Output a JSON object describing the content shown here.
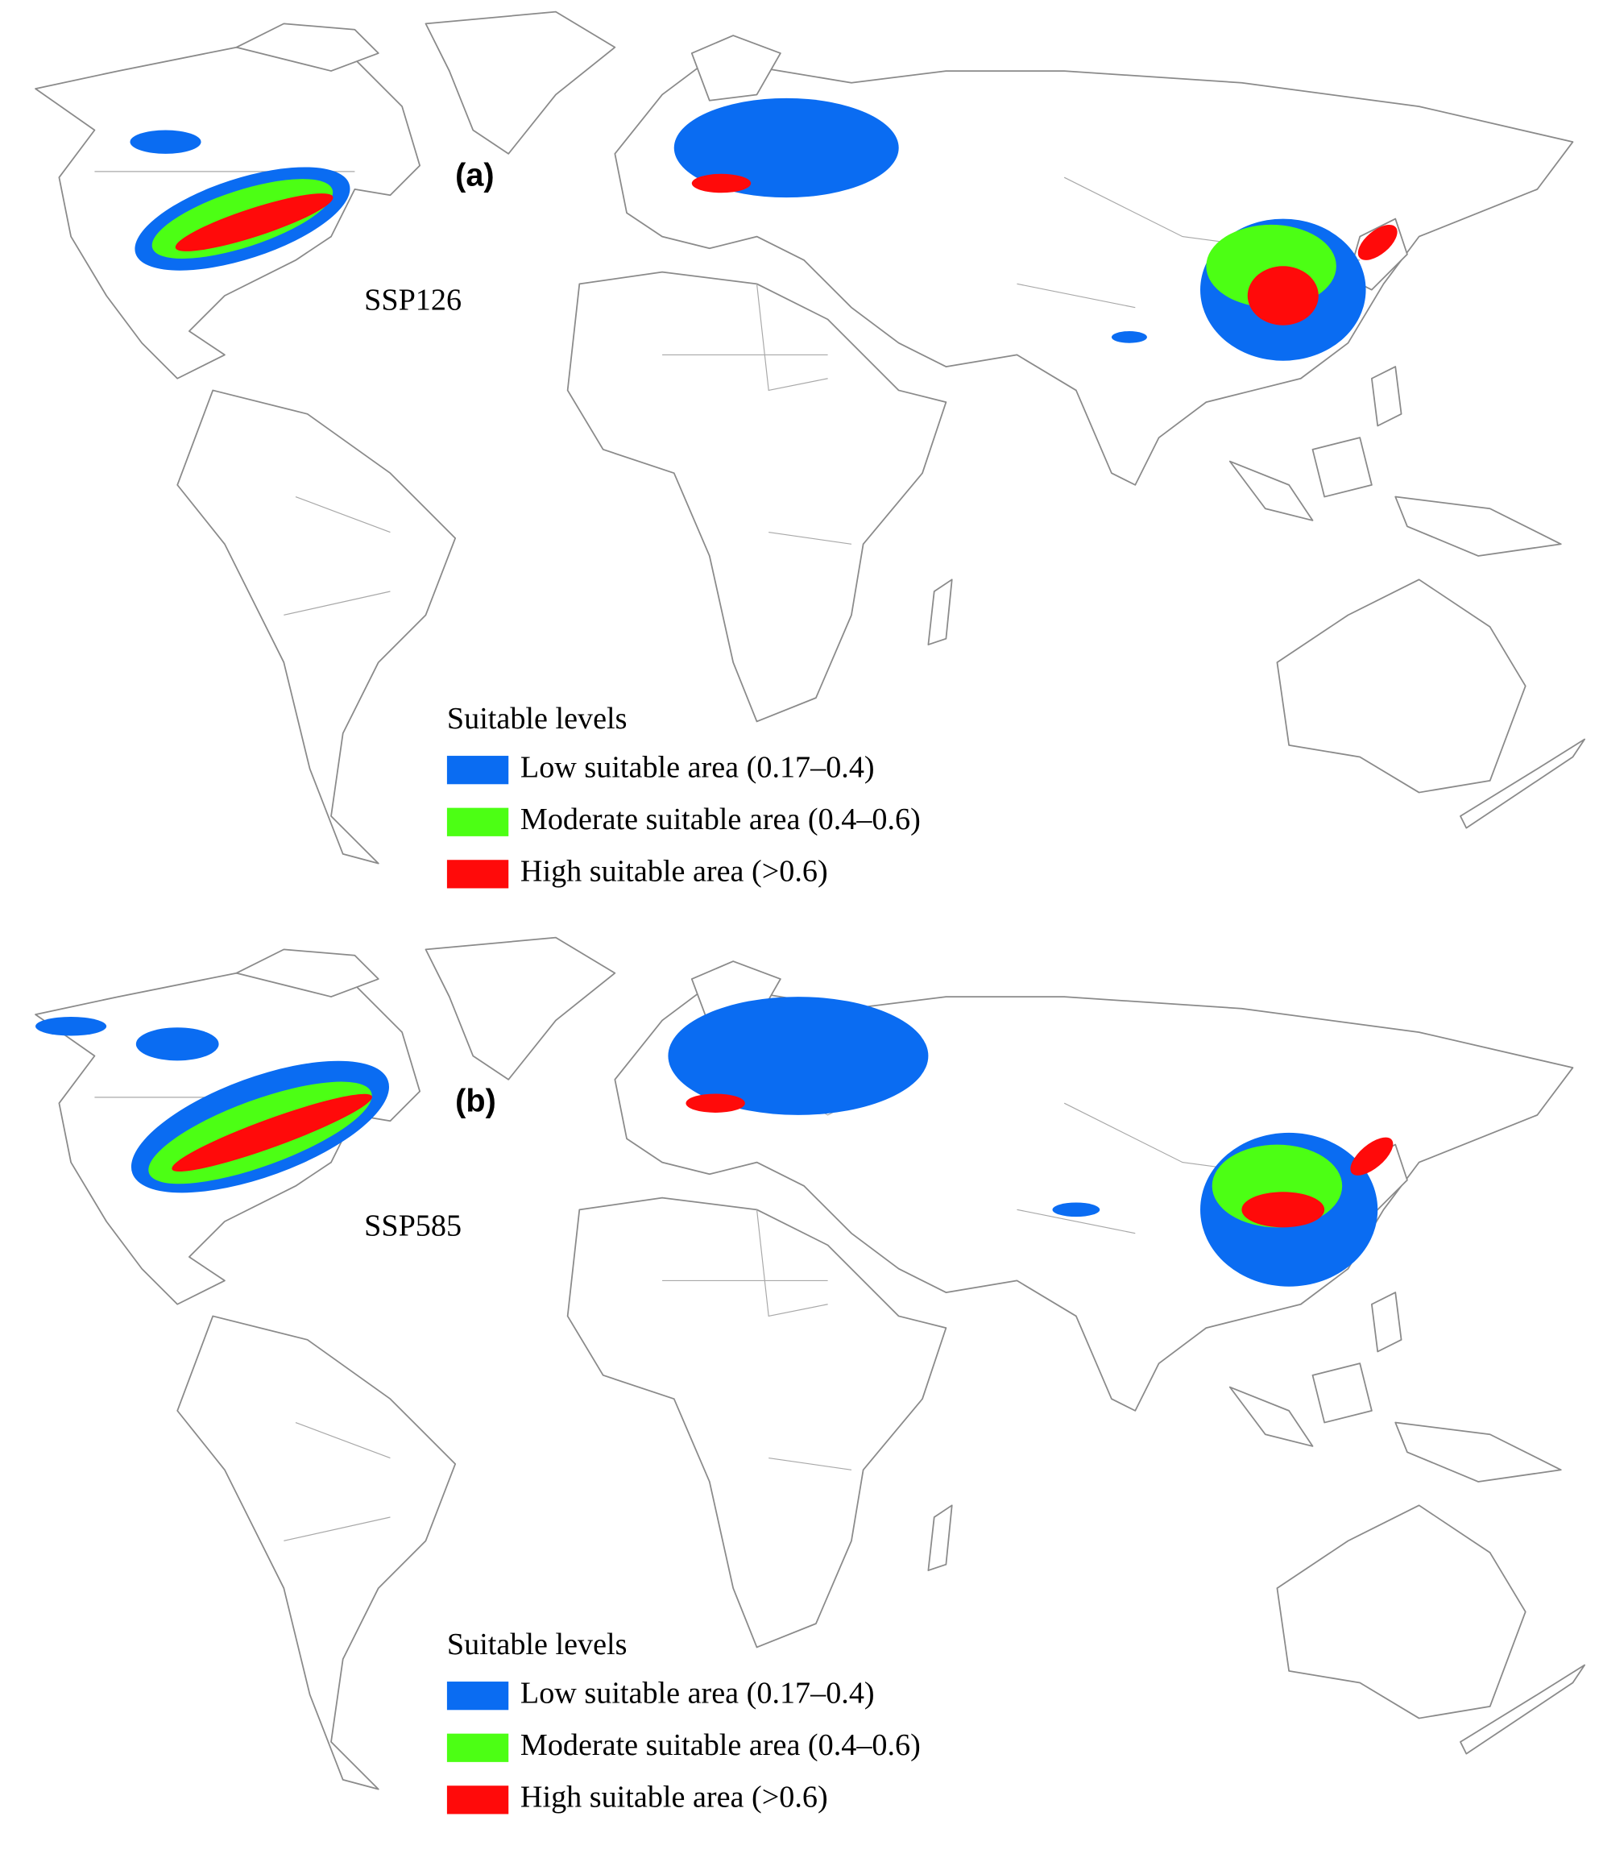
{
  "panels": [
    {
      "label": "(a)",
      "scenario": "SSP126",
      "legend": {
        "title": "Suitable levels",
        "items": [
          {
            "label": "Low suitable area (0.17–0.4)",
            "color": "#0a6cf2"
          },
          {
            "label": "Moderate suitable area (0.4–0.6)",
            "color": "#4cff14"
          },
          {
            "label": "High suitable area (>0.6)",
            "color": "#ff0a0a"
          }
        ]
      }
    },
    {
      "label": "(b)",
      "scenario": "SSP585",
      "legend": {
        "title": "Suitable levels",
        "items": [
          {
            "label": "Low suitable area (0.17–0.4)",
            "color": "#0a6cf2"
          },
          {
            "label": "Moderate suitable area (0.4–0.6)",
            "color": "#4cff14"
          },
          {
            "label": "High suitable area (>0.6)",
            "color": "#ff0a0a"
          }
        ]
      }
    }
  ]
}
